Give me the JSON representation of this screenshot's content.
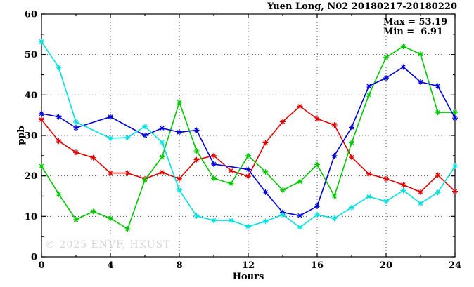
{
  "chart_data": {
    "type": "line",
    "title": "Yuen Long, N02 20180217-20180220",
    "stats": {
      "max_line": "Max = 53.19",
      "min_line": "Min =  6.91"
    },
    "stated_max": 53.19,
    "stated_min": 6.91,
    "watermark": "© 2025 ENVF, HKUST",
    "xlabel": "Hours",
    "ylabel": "ppb",
    "xlim": [
      0,
      24
    ],
    "ylim": [
      0,
      60
    ],
    "x_ticks": [
      0,
      4,
      8,
      12,
      16,
      20,
      24
    ],
    "x_minor_ticks": [
      2,
      6,
      10,
      14,
      18,
      22
    ],
    "y_ticks": [
      0,
      10,
      20,
      30,
      40,
      50,
      60
    ],
    "y_minor_ticks": [
      5,
      15,
      25,
      35,
      45,
      55
    ],
    "grid": "dotted lines at major ticks",
    "legend": "none",
    "marker": "star",
    "x_hours": [
      0,
      1,
      2,
      3,
      4,
      5,
      6,
      7,
      8,
      9,
      10,
      11,
      12,
      13,
      14,
      15,
      16,
      17,
      18,
      19,
      20,
      21,
      22,
      23,
      24
    ],
    "series": [
      {
        "name": "red",
        "color": "#e00000",
        "values": [
          33.9,
          28.6,
          25.8,
          24.5,
          20.7,
          20.7,
          19.3,
          20.9,
          19.3,
          24.0,
          25.0,
          21.3,
          19.9,
          28.2,
          33.4,
          37.2,
          34.1,
          32.6,
          24.6,
          20.5,
          19.3,
          17.8,
          16.0,
          20.2,
          16.2
        ]
      },
      {
        "name": "green",
        "color": "#00c800",
        "values": [
          22.4,
          15.5,
          9.2,
          11.2,
          9.5,
          6.91,
          19.0,
          24.7,
          38.2,
          26.2,
          19.4,
          18.1,
          25.0,
          21.0,
          16.5,
          18.6,
          22.8,
          15.0,
          28.2,
          40.0,
          49.3,
          52.0,
          50.1,
          35.7,
          35.7
        ]
      },
      {
        "name": "blue",
        "color": "#0000d8",
        "values": [
          35.4,
          34.6,
          31.9,
          null,
          34.6,
          null,
          30.0,
          31.8,
          30.8,
          31.3,
          22.9,
          null,
          21.6,
          16.0,
          11.0,
          10.2,
          12.5,
          25.0,
          32.0,
          42.2,
          44.2,
          46.9,
          43.2,
          42.2,
          34.3
        ]
      },
      {
        "name": "cyan",
        "color": "#00e0e0",
        "values": [
          53.19,
          46.8,
          33.3,
          null,
          29.3,
          29.5,
          32.2,
          28.3,
          16.5,
          10.1,
          9.0,
          9.0,
          7.5,
          8.8,
          10.4,
          7.3,
          10.4,
          9.5,
          12.2,
          14.9,
          13.7,
          16.4,
          13.2,
          15.9,
          22.4
        ]
      }
    ]
  }
}
